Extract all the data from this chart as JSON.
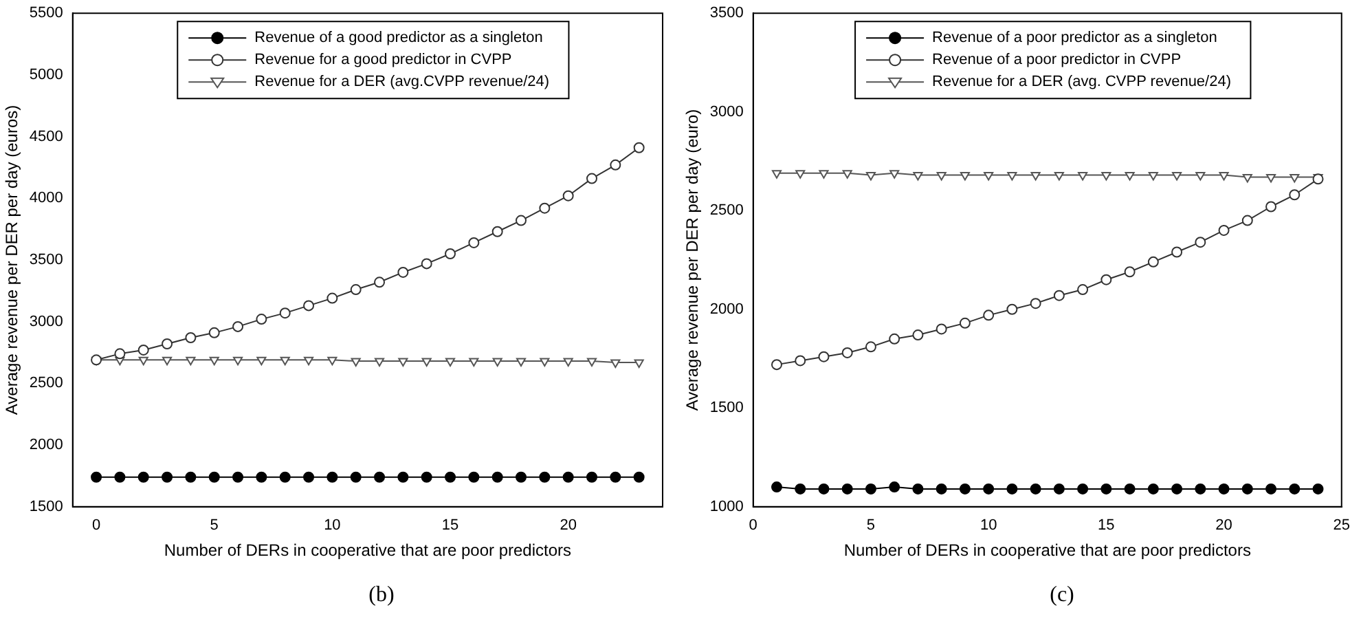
{
  "chart_data": [
    {
      "type": "line",
      "xlabel": "Number of DERs in cooperative that are poor predictors",
      "ylabel": "Average revenue per DER per day (euros)",
      "annotations": [
        "(b)"
      ],
      "x": [
        0,
        1,
        2,
        3,
        4,
        5,
        6,
        7,
        8,
        9,
        10,
        11,
        12,
        13,
        14,
        15,
        16,
        17,
        18,
        19,
        20,
        21,
        22,
        23
      ],
      "xlim": [
        -1,
        24
      ],
      "xticks": [
        0,
        5,
        10,
        15,
        20
      ],
      "ylim": [
        1500,
        5500
      ],
      "yticks": [
        1500,
        2000,
        2500,
        3000,
        3500,
        4000,
        4500,
        5000,
        5500
      ],
      "grid": false,
      "legend": "top",
      "line_style": "solid",
      "series": [
        {
          "name": "Revenue of a good predictor as a singleton",
          "color": "#000000",
          "marker": "circle",
          "values": [
            1740,
            1740,
            1740,
            1740,
            1740,
            1740,
            1740,
            1740,
            1740,
            1740,
            1740,
            1740,
            1740,
            1740,
            1740,
            1740,
            1740,
            1740,
            1740,
            1740,
            1740,
            1740,
            1740,
            1740
          ]
        },
        {
          "name": "Revenue for a good predictor in CVPP",
          "color": "#333333",
          "marker": "circle",
          "values": [
            2690,
            2740,
            2770,
            2820,
            2870,
            2910,
            2960,
            3020,
            3070,
            3130,
            3190,
            3260,
            3320,
            3400,
            3470,
            3550,
            3640,
            3730,
            3820,
            3920,
            4020,
            4160,
            4270,
            4410
          ]
        },
        {
          "name": "Revenue for a DER (avg.CVPP revenue/24)",
          "color": "#555555",
          "marker": "triangle",
          "values": [
            2690,
            2690,
            2690,
            2690,
            2690,
            2690,
            2690,
            2690,
            2690,
            2690,
            2690,
            2680,
            2680,
            2680,
            2680,
            2680,
            2680,
            2680,
            2680,
            2680,
            2680,
            2680,
            2670,
            2670
          ]
        }
      ]
    },
    {
      "type": "line",
      "xlabel": "Number of DERs in cooperative that are poor predictors",
      "ylabel": "Average revenue per DER per day (euro)",
      "annotations": [
        "(c)"
      ],
      "x": [
        1,
        2,
        3,
        4,
        5,
        6,
        7,
        8,
        9,
        10,
        11,
        12,
        13,
        14,
        15,
        16,
        17,
        18,
        19,
        20,
        21,
        22,
        23,
        24
      ],
      "xlim": [
        0,
        25
      ],
      "xticks": [
        0,
        5,
        10,
        15,
        20,
        25
      ],
      "ylim": [
        1000,
        3500
      ],
      "yticks": [
        1000,
        1500,
        2000,
        2500,
        3000,
        3500
      ],
      "grid": false,
      "legend": "top",
      "line_style": "solid",
      "series": [
        {
          "name": "Revenue of a poor predictor as a singleton",
          "color": "#000000",
          "marker": "circle",
          "values": [
            1100,
            1090,
            1090,
            1090,
            1090,
            1100,
            1090,
            1090,
            1090,
            1090,
            1090,
            1090,
            1090,
            1090,
            1090,
            1090,
            1090,
            1090,
            1090,
            1090,
            1090,
            1090,
            1090,
            1090
          ]
        },
        {
          "name": "Revenue of a poor predictor in CVPP",
          "color": "#333333",
          "marker": "circle",
          "values": [
            1720,
            1740,
            1760,
            1780,
            1810,
            1850,
            1870,
            1900,
            1930,
            1970,
            2000,
            2030,
            2070,
            2100,
            2150,
            2190,
            2240,
            2290,
            2340,
            2400,
            2450,
            2520,
            2580,
            2660
          ]
        },
        {
          "name": "Revenue for a DER (avg. CVPP revenue/24)",
          "color": "#555555",
          "marker": "triangle",
          "values": [
            2690,
            2690,
            2690,
            2690,
            2680,
            2690,
            2680,
            2680,
            2680,
            2680,
            2680,
            2680,
            2680,
            2680,
            2680,
            2680,
            2680,
            2680,
            2680,
            2680,
            2670,
            2670,
            2670,
            2670
          ]
        }
      ]
    }
  ]
}
